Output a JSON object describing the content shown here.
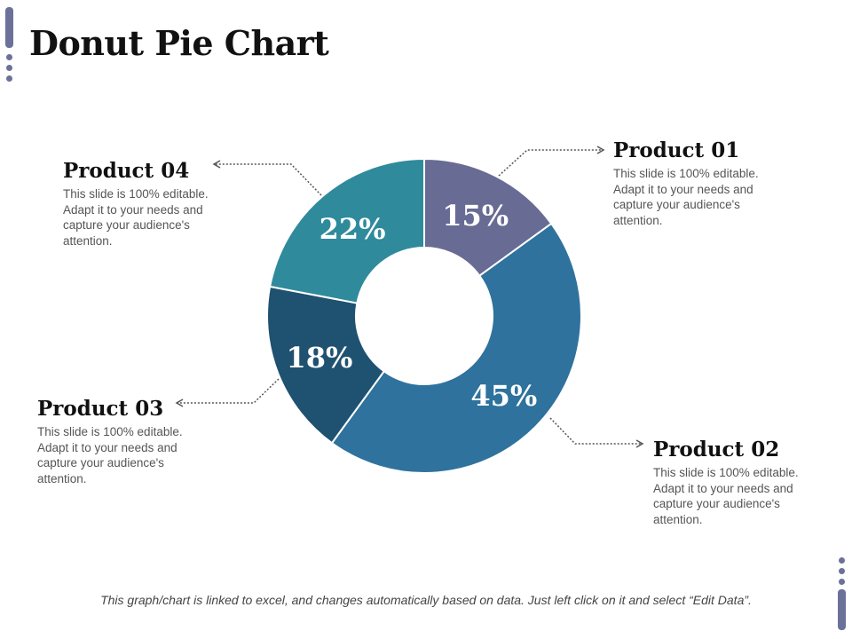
{
  "page": {
    "title": "Donut Pie Chart",
    "footer": "This graph/chart is linked to excel, and changes automatically based on data.  Just left click on it and select “Edit Data”."
  },
  "colors": {
    "accent": "#6b7199",
    "label_text": "#ffffff",
    "connector": "#555555"
  },
  "chart_data": {
    "type": "pie",
    "donut": true,
    "categories": [
      "Product 01",
      "Product 02",
      "Product 03",
      "Product 04"
    ],
    "values": [
      15,
      45,
      18,
      22
    ],
    "labels": [
      "15%",
      "45%",
      "18%",
      "22%"
    ],
    "colors": [
      "#686b93",
      "#2e729d",
      "#1f5170",
      "#2f8a9c"
    ]
  },
  "callouts": [
    {
      "title": "Product 01",
      "desc": "This slide is 100% editable. Adapt it to your needs and capture your audience's attention."
    },
    {
      "title": "Product 02",
      "desc": "This slide is 100% editable. Adapt it to your needs and capture your audience's attention."
    },
    {
      "title": "Product 03",
      "desc": "This slide is 100% editable. Adapt it to your needs and capture your audience's attention."
    },
    {
      "title": "Product 04",
      "desc": "This slide is 100% editable. Adapt it to your needs and capture your audience's attention."
    }
  ]
}
